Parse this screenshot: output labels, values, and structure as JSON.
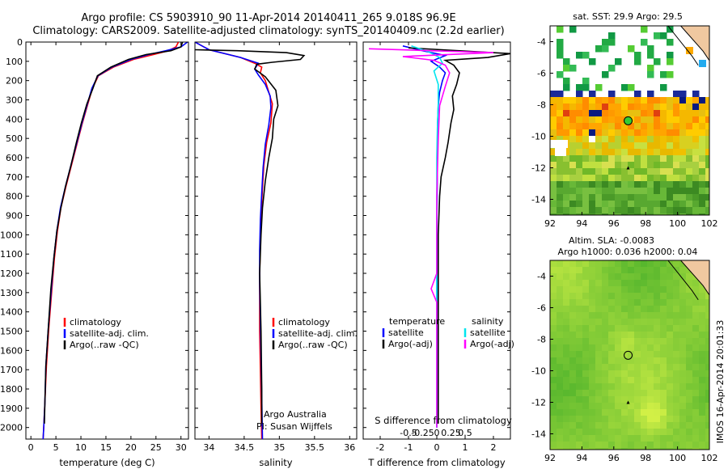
{
  "header": {
    "line1": "Argo profile: CS 5903910_90 11-Apr-2014 20140411_265 9.018S 96.9E",
    "line2": "Climatology: CARS2009. Satellite-adjusted climatology: synTS_20140409.nc (2.2d earlier)"
  },
  "colors": {
    "climatology": "#ff0000",
    "satellite": "#0000ff",
    "argo": "#000000",
    "satellite_salinity": "#00e5ee",
    "argo_adj_salinity": "#ff00ff"
  },
  "chart_data": [
    {
      "type": "line",
      "id": "temperature-profile",
      "xlabel": "temperature (deg C)",
      "ylabel": "",
      "xlim": [
        -1,
        31.5
      ],
      "ylim": [
        2060,
        0
      ],
      "xticks": [
        0,
        5,
        10,
        15,
        20,
        25,
        30
      ],
      "yticks": [
        0,
        100,
        200,
        300,
        400,
        500,
        600,
        700,
        800,
        900,
        1000,
        1100,
        1200,
        1300,
        1400,
        1500,
        1600,
        1700,
        1800,
        1900,
        2000
      ],
      "legend": [
        "climatology",
        "satellite-adj. clim.",
        "Argo(..raw -QC)"
      ],
      "legend_colors": [
        "#ff0000",
        "#0000ff",
        "#000000"
      ],
      "series": [
        {
          "name": "climatology",
          "color": "#ff0000",
          "x": [
            29.5,
            29.0,
            27.5,
            24.5,
            20.5,
            16.5,
            13.5,
            12.3,
            11.4,
            10.3,
            9.3,
            8.1,
            7.0,
            6.0,
            5.3,
            4.7,
            4.2,
            3.6,
            3.1,
            2.8,
            2.6,
            2.45
          ],
          "y": [
            0,
            25,
            45,
            65,
            90,
            130,
            175,
            240,
            320,
            420,
            520,
            640,
            750,
            860,
            980,
            1120,
            1280,
            1480,
            1680,
            1870,
            1980,
            2060
          ]
        },
        {
          "name": "satellite-adj. clim.",
          "color": "#0000ff",
          "x": [
            31.3,
            30.0,
            27.0,
            23.5,
            20.0,
            16.2,
            13.4,
            12.2,
            11.3,
            10.2,
            9.2,
            8.0,
            6.9,
            5.9,
            5.2,
            4.6,
            4.1,
            3.5,
            3.0,
            2.8,
            2.6,
            2.45
          ],
          "y": [
            0,
            25,
            45,
            65,
            90,
            130,
            175,
            240,
            320,
            420,
            520,
            640,
            750,
            860,
            980,
            1120,
            1280,
            1480,
            1680,
            1870,
            1980,
            2060
          ]
        },
        {
          "name": "Argo(..raw -QC)",
          "color": "#000000",
          "x": [
            30.3,
            30.0,
            28.0,
            23.0,
            19.5,
            16.0,
            13.3,
            12.4,
            11.2,
            10.1,
            9.1,
            8.0,
            6.9,
            6.0,
            5.2,
            4.6,
            4.0,
            3.5,
            3.0,
            2.8,
            2.7
          ],
          "y": [
            0,
            25,
            45,
            65,
            90,
            130,
            175,
            240,
            320,
            420,
            520,
            640,
            750,
            860,
            980,
            1120,
            1280,
            1480,
            1680,
            1870,
            1980
          ]
        }
      ]
    },
    {
      "type": "line",
      "id": "salinity-profile",
      "xlabel": "salinity",
      "xlim": [
        33.8,
        36.1
      ],
      "ylim": [
        2060,
        0
      ],
      "xticks": [
        34,
        34.5,
        35,
        35.5,
        36
      ],
      "legend": [
        "climatology",
        "satellite-adj. clim.",
        "Argo(..raw -QC)"
      ],
      "legend_colors": [
        "#ff0000",
        "#0000ff",
        "#000000"
      ],
      "annotations": [
        "Argo Australia",
        "PI: Susan Wijffels"
      ],
      "series": [
        {
          "name": "climatology",
          "color": "#ff0000",
          "x": [
            33.8,
            34.0,
            34.45,
            34.65,
            34.75,
            34.73,
            34.8,
            34.85,
            34.9,
            34.88,
            34.82,
            34.78,
            34.76,
            34.74,
            34.73,
            34.72,
            34.72,
            34.72,
            34.73,
            34.74,
            34.75
          ],
          "y": [
            0,
            40,
            80,
            110,
            130,
            160,
            200,
            260,
            320,
            420,
            520,
            640,
            760,
            900,
            1050,
            1200,
            1300,
            1500,
            1700,
            1900,
            2060
          ]
        },
        {
          "name": "satellite-adj. clim.",
          "color": "#0000ff",
          "x": [
            33.8,
            34.0,
            34.45,
            34.7,
            34.65,
            34.7,
            34.8,
            34.87,
            34.88,
            34.85,
            34.8,
            34.77,
            34.75,
            34.73,
            34.72,
            34.72,
            34.73,
            34.74,
            34.75,
            34.76
          ],
          "y": [
            0,
            40,
            80,
            110,
            140,
            170,
            220,
            280,
            340,
            430,
            530,
            650,
            780,
            920,
            1080,
            1250,
            1450,
            1650,
            1850,
            2060
          ]
        },
        {
          "name": "Argo(..raw -QC)",
          "color": "#000000",
          "x": [
            33.8,
            34.4,
            35.1,
            35.35,
            35.3,
            34.9,
            34.68,
            34.65,
            34.8,
            34.95,
            34.98,
            34.92,
            34.9,
            34.85,
            34.8,
            34.76,
            34.74,
            34.72,
            34.74,
            34.75,
            34.75
          ],
          "y": [
            40,
            45,
            55,
            70,
            90,
            105,
            115,
            140,
            180,
            250,
            330,
            400,
            500,
            600,
            720,
            860,
            1000,
            1200,
            1500,
            1800,
            1980
          ]
        }
      ]
    },
    {
      "type": "line",
      "id": "difference-profile",
      "xlabel": "T difference from climatology",
      "xlabel_top": "S difference from climatology",
      "xlim": [
        -2.6,
        2.6
      ],
      "ylim": [
        2060,
        0
      ],
      "xticks_bottom": [
        -2,
        -1,
        0,
        1,
        2
      ],
      "xticks_top": [
        "-0.5",
        "-0.25",
        "0",
        "0.25",
        "0.5"
      ],
      "legend_temperature": [
        "temperature",
        "satellite",
        "Argo(-adj)"
      ],
      "legend_salinity": [
        "salinity",
        "satellite",
        "Argo(-adj)"
      ],
      "series": [
        {
          "name": "temperature satellite",
          "color": "#0000ff",
          "x": [
            -1.2,
            -0.5,
            0.3,
            -0.2,
            0.1,
            0.3,
            0.2,
            0.1,
            0.05,
            0.03,
            0.02,
            0.02,
            0.01,
            0,
            0,
            0,
            0,
            0,
            0
          ],
          "y": [
            20,
            45,
            70,
            100,
            130,
            160,
            200,
            260,
            330,
            420,
            520,
            650,
            800,
            1000,
            1200,
            1400,
            1600,
            1800,
            2000
          ]
        },
        {
          "name": "temperature Argo(-adj)",
          "color": "#000000",
          "x": [
            -1.0,
            2.6,
            1.8,
            0.3,
            0.6,
            0.8,
            0.7,
            0.55,
            0.6,
            0.5,
            0.4,
            0.3,
            0.15,
            0.1,
            0.05,
            0.05,
            0.05,
            0.05,
            0.05,
            0.05
          ],
          "y": [
            30,
            60,
            80,
            95,
            120,
            160,
            220,
            280,
            350,
            420,
            520,
            600,
            700,
            800,
            1000,
            1200,
            1400,
            1600,
            1800,
            1980
          ]
        },
        {
          "name": "salinity satellite",
          "color": "#00e5ee",
          "x": [
            -0.9,
            -0.3,
            0.1,
            0.2,
            -0.1,
            0.05,
            0.05,
            0.02,
            0,
            0,
            0,
            0,
            0
          ],
          "y": [
            20,
            50,
            80,
            110,
            150,
            220,
            320,
            450,
            600,
            800,
            1200,
            1600,
            2000
          ]
        },
        {
          "name": "salinity Argo(-adj)",
          "color": "#ff00ff",
          "x": [
            -2.4,
            2.0,
            -1.2,
            -0.1,
            0.3,
            0.45,
            0.3,
            0.1,
            0.05,
            0,
            0,
            -0.2,
            0,
            0,
            0
          ],
          "y": [
            35,
            55,
            75,
            95,
            120,
            160,
            230,
            330,
            500,
            800,
            1200,
            1280,
            1350,
            1700,
            2000
          ]
        }
      ]
    },
    {
      "type": "heatmap",
      "id": "sst-map",
      "title": "sat. SST: 29.9 Argo: 29.5",
      "xlim": [
        92,
        102
      ],
      "ylim": [
        -15,
        -3
      ],
      "xticks": [
        92,
        94,
        96,
        98,
        100,
        102
      ],
      "yticks": [
        -4,
        -6,
        -8,
        -10,
        -12,
        -14
      ],
      "argo_position": [
        96.9,
        -9.018
      ]
    },
    {
      "type": "heatmap",
      "id": "sla-map",
      "title_line1": "Altim. SLA: -0.0083",
      "title_line2": "Argo h1000: 0.036 h2000: 0.04",
      "xlim": [
        92,
        102
      ],
      "ylim": [
        -15,
        -3
      ],
      "xticks": [
        92,
        94,
        96,
        98,
        100,
        102
      ],
      "yticks": [
        -4,
        -6,
        -8,
        -10,
        -12,
        -14
      ],
      "argo_position": [
        96.9,
        -9.018
      ]
    }
  ],
  "footer": {
    "watermark": "IMOS 16-Apr-2014 20:01:33"
  }
}
